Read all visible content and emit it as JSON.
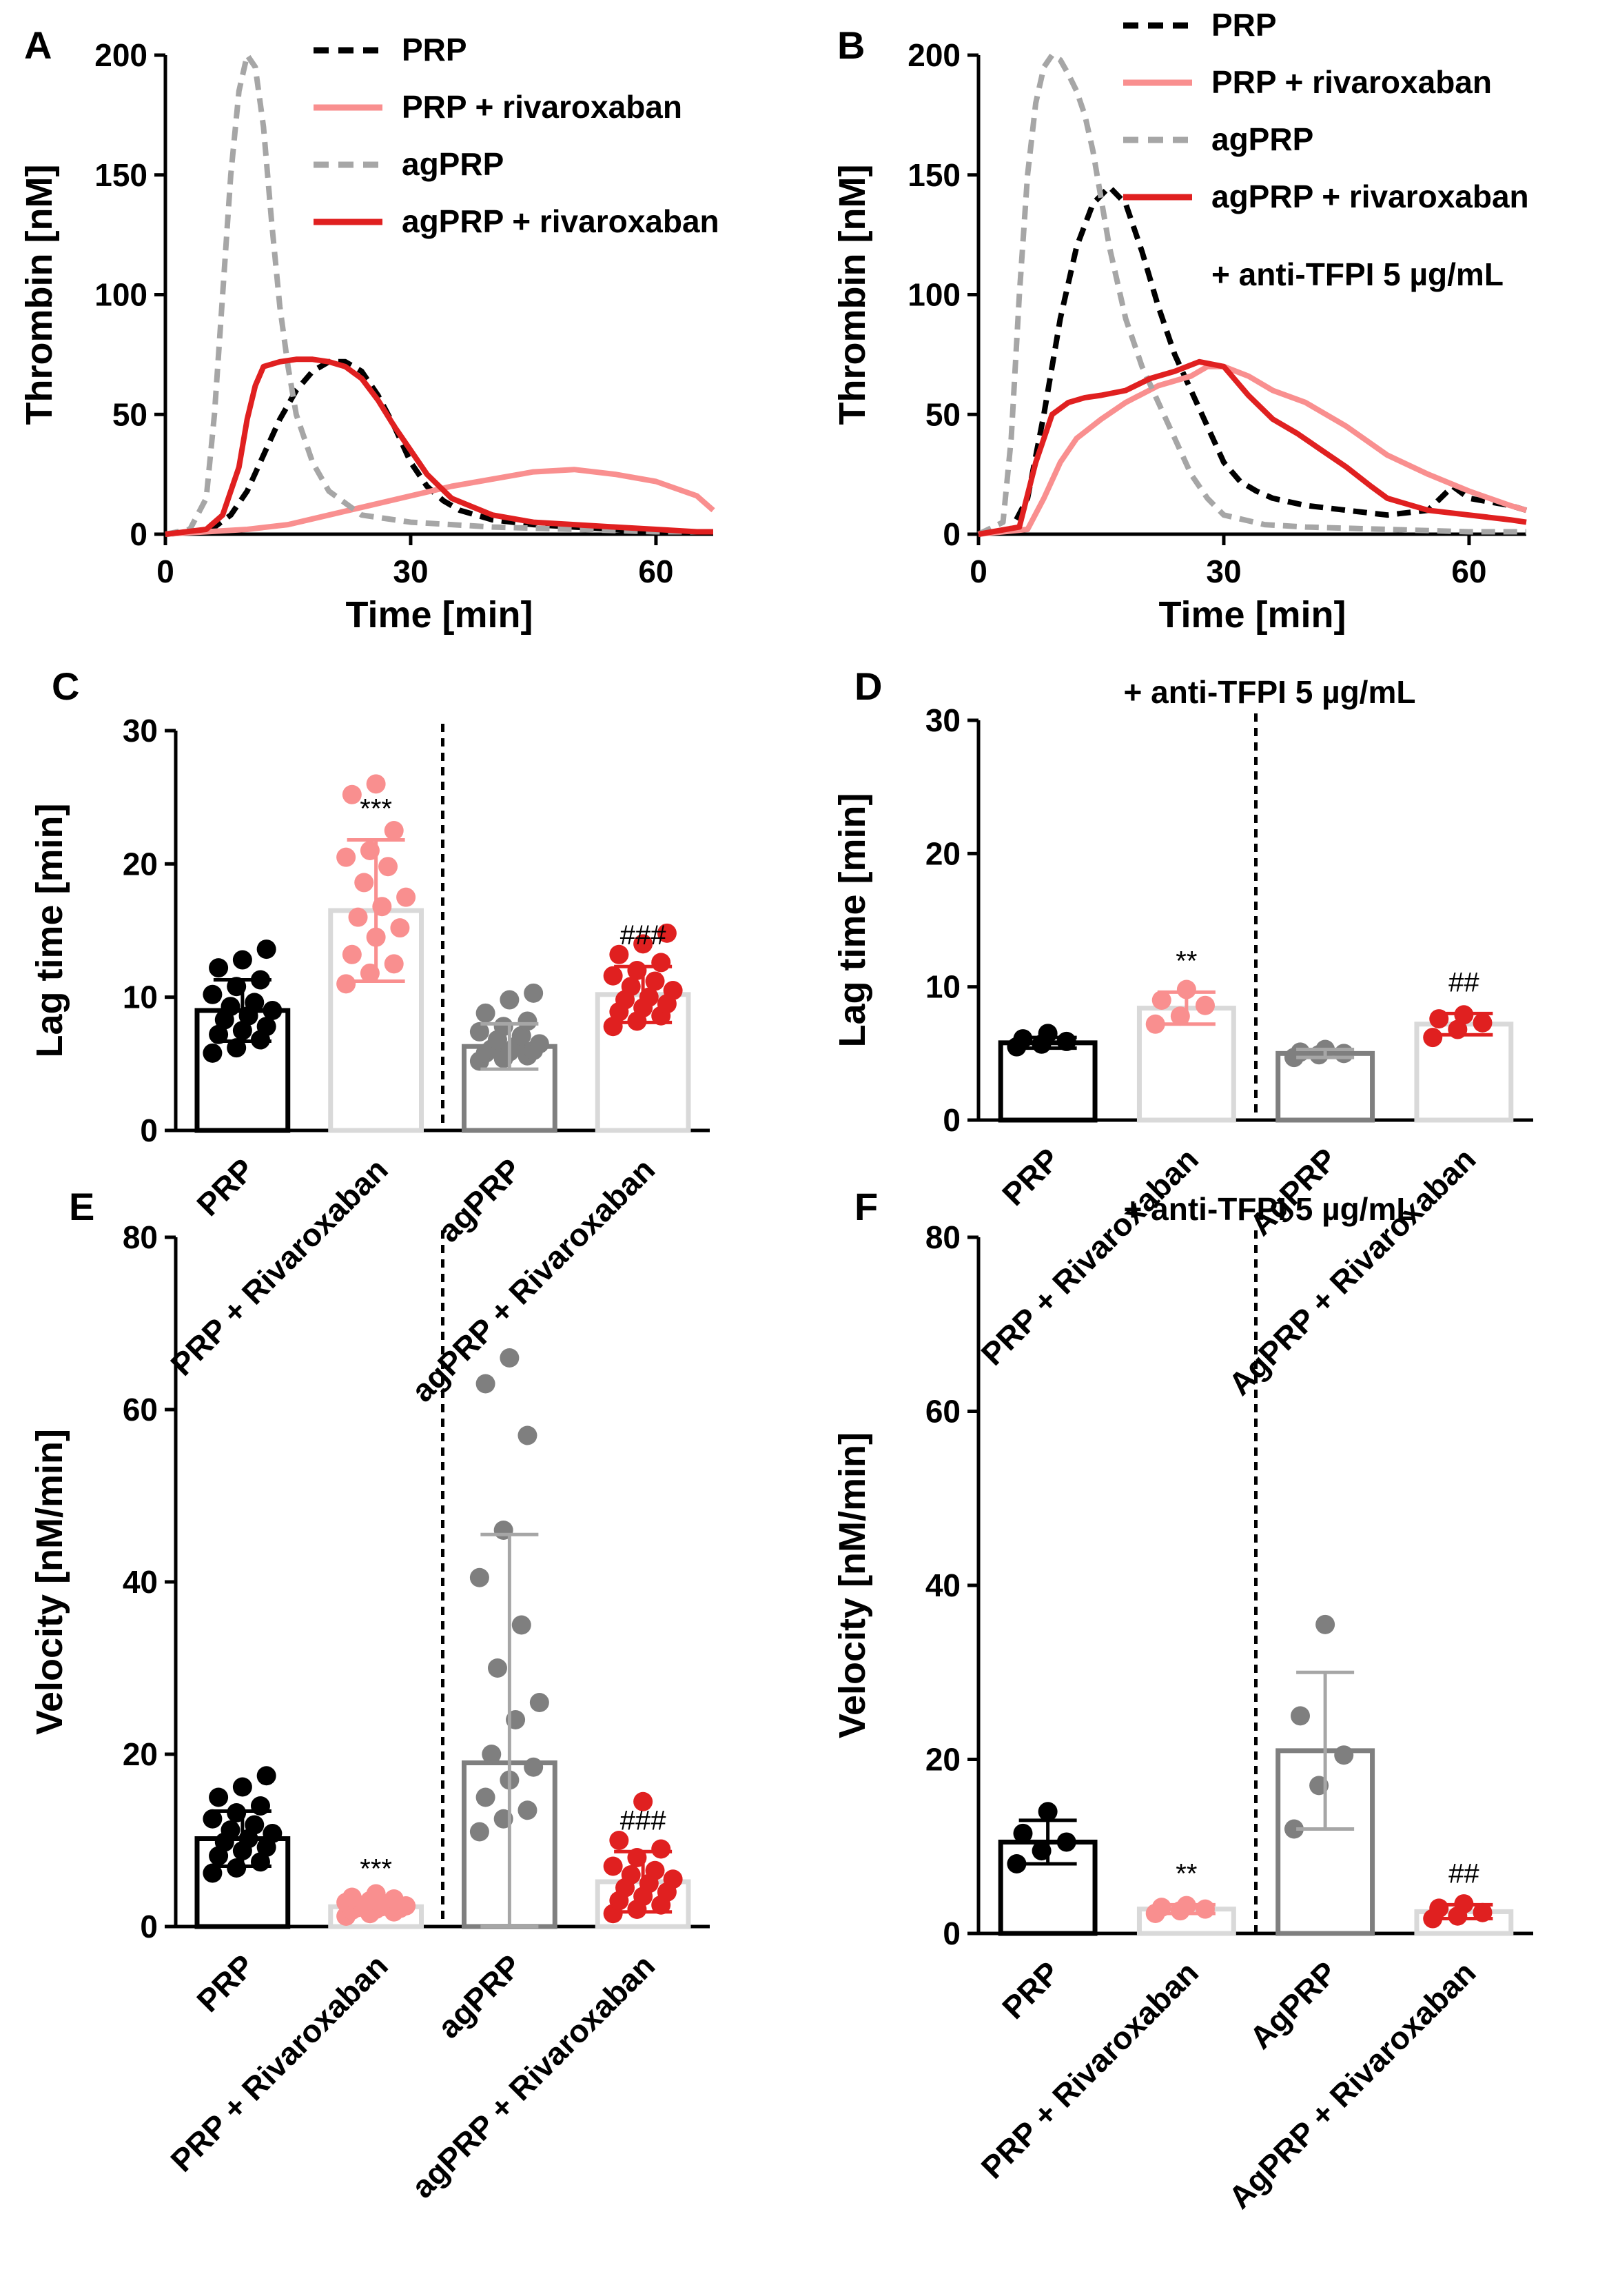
{
  "figure": {
    "panels": [
      "A",
      "B",
      "C",
      "D",
      "E",
      "F"
    ]
  },
  "chart_data": [
    {
      "panel": "A",
      "type": "line",
      "xlabel": "Time [min]",
      "ylabel": "Thrombin [nM]",
      "xlim": [
        0,
        67
      ],
      "ylim": [
        0,
        200
      ],
      "xticks": [
        "0",
        "30",
        "60"
      ],
      "yticks": [
        "0",
        "50",
        "100",
        "150",
        "200"
      ],
      "legend_position": "top-right",
      "series": [
        {
          "name": "PRP",
          "color": "#000000",
          "dash": true,
          "x": [
            0,
            4,
            6,
            8,
            10,
            12,
            14,
            16,
            18,
            20,
            22,
            24,
            26,
            28,
            30,
            32,
            34,
            36,
            40,
            45,
            50,
            55,
            60,
            65,
            67
          ],
          "y": [
            0,
            1,
            3,
            8,
            18,
            33,
            48,
            60,
            68,
            72,
            72,
            68,
            58,
            45,
            30,
            20,
            14,
            10,
            6,
            4,
            3,
            2,
            1,
            1,
            1
          ]
        },
        {
          "name": "PRP + rivaroxaban",
          "color": "#F98F8F",
          "dash": false,
          "x": [
            0,
            10,
            15,
            20,
            25,
            30,
            35,
            40,
            45,
            50,
            55,
            60,
            65,
            67
          ],
          "y": [
            0,
            2,
            4,
            8,
            12,
            16,
            20,
            23,
            26,
            27,
            25,
            22,
            16,
            10
          ]
        },
        {
          "name": "agPRP",
          "color": "#A6A6A6",
          "dash": true,
          "x": [
            0,
            3,
            5,
            6,
            7,
            8,
            9,
            10,
            11,
            12,
            13,
            14,
            15,
            16,
            18,
            20,
            24,
            30,
            40,
            50,
            60,
            67
          ],
          "y": [
            0,
            2,
            15,
            50,
            100,
            150,
            185,
            200,
            195,
            170,
            130,
            95,
            70,
            50,
            30,
            18,
            8,
            5,
            3,
            2,
            1,
            1
          ]
        },
        {
          "name": "agPRP + rivaroxaban",
          "color": "#E02020",
          "dash": false,
          "x": [
            0,
            5,
            7,
            9,
            10,
            11,
            12,
            14,
            16,
            18,
            20,
            22,
            24,
            26,
            28,
            30,
            32,
            35,
            40,
            45,
            50,
            55,
            60,
            65,
            67
          ],
          "y": [
            0,
            2,
            8,
            28,
            48,
            62,
            70,
            72,
            73,
            73,
            72,
            70,
            65,
            56,
            45,
            35,
            25,
            15,
            8,
            5,
            4,
            3,
            2,
            1,
            1
          ]
        }
      ]
    },
    {
      "panel": "B",
      "type": "line",
      "xlabel": "Time [min]",
      "ylabel": "Thrombin [nM]",
      "xlim": [
        0,
        67
      ],
      "ylim": [
        0,
        200
      ],
      "xticks": [
        "0",
        "30",
        "60"
      ],
      "yticks": [
        "0",
        "50",
        "100",
        "150",
        "200"
      ],
      "legend_position": "top-right",
      "annotation": "+ anti-TFPI 5 µg/mL",
      "series": [
        {
          "name": "PRP",
          "color": "#000000",
          "dash": true,
          "x": [
            0,
            4,
            6,
            8,
            10,
            12,
            14,
            16,
            18,
            20,
            22,
            24,
            26,
            28,
            30,
            32,
            34,
            36,
            40,
            45,
            50,
            55,
            58,
            60,
            65,
            67
          ],
          "y": [
            0,
            2,
            15,
            50,
            90,
            120,
            138,
            145,
            138,
            118,
            95,
            75,
            60,
            45,
            30,
            22,
            18,
            15,
            12,
            10,
            8,
            10,
            20,
            15,
            12,
            10
          ]
        },
        {
          "name": "PRP + rivaroxaban",
          "color": "#F98F8F",
          "dash": false,
          "x": [
            0,
            6,
            8,
            10,
            12,
            15,
            18,
            22,
            26,
            28,
            30,
            33,
            36,
            40,
            45,
            50,
            55,
            60,
            65,
            67
          ],
          "y": [
            0,
            2,
            15,
            30,
            40,
            48,
            55,
            62,
            66,
            70,
            70,
            66,
            60,
            55,
            45,
            33,
            25,
            18,
            12,
            10
          ]
        },
        {
          "name": "agPRP",
          "color": "#A6A6A6",
          "dash": true,
          "x": [
            0,
            3,
            4,
            5,
            6,
            7,
            8,
            9,
            10,
            11,
            12,
            13,
            14,
            15,
            16,
            18,
            20,
            22,
            24,
            26,
            28,
            30,
            35,
            40,
            50,
            60,
            67
          ],
          "y": [
            0,
            5,
            40,
            100,
            150,
            180,
            195,
            200,
            198,
            192,
            185,
            175,
            160,
            140,
            120,
            90,
            70,
            55,
            40,
            25,
            15,
            8,
            4,
            3,
            2,
            1,
            1
          ]
        },
        {
          "name": "agPRP + rivaroxaban",
          "color": "#E02020",
          "dash": false,
          "x": [
            0,
            5,
            7,
            9,
            11,
            13,
            15,
            18,
            21,
            24,
            27,
            30,
            33,
            36,
            39,
            42,
            45,
            48,
            50,
            55,
            60,
            65,
            67
          ],
          "y": [
            0,
            3,
            30,
            50,
            55,
            57,
            58,
            60,
            65,
            68,
            72,
            70,
            58,
            48,
            42,
            35,
            28,
            20,
            15,
            10,
            8,
            6,
            5
          ]
        }
      ]
    },
    {
      "panel": "C",
      "type": "bar",
      "ylabel": "Lag time [min]",
      "ylim": [
        0,
        30
      ],
      "yticks": [
        "0",
        "10",
        "20",
        "30"
      ],
      "categories": [
        "PRP",
        "PRP + Rivaroxaban",
        "agPRP",
        "agPRP + Rivaroxaban"
      ],
      "colors": [
        "#000000",
        "#F98F8F",
        "#7F7F7F",
        "#E02020"
      ],
      "values": [
        9.0,
        16.5,
        6.3,
        10.2
      ],
      "sd": [
        2.3,
        5.3,
        1.7,
        2.1
      ],
      "significance": [
        "",
        "***",
        "",
        "###"
      ],
      "points": [
        [
          5.8,
          6.2,
          6.8,
          7.2,
          7.5,
          7.8,
          8.3,
          8.6,
          9.0,
          9.3,
          9.6,
          10.2,
          10.8,
          11.3,
          12.2,
          12.8,
          13.6
        ],
        [
          11.0,
          11.8,
          12.5,
          13.2,
          14.5,
          15.2,
          16.0,
          16.8,
          17.5,
          18.6,
          19.8,
          20.5,
          21.0,
          22.5,
          25.2,
          26.0
        ],
        [
          5.2,
          5.4,
          5.6,
          5.8,
          5.9,
          6.0,
          6.1,
          6.3,
          6.5,
          6.8,
          7.1,
          7.4,
          7.8,
          8.2,
          8.8,
          9.8,
          10.3
        ],
        [
          7.8,
          8.2,
          8.6,
          8.9,
          9.2,
          9.5,
          9.8,
          10.0,
          10.5,
          10.8,
          11.2,
          11.6,
          12.0,
          12.6,
          13.2,
          14.0,
          14.8
        ]
      ]
    },
    {
      "panel": "D",
      "type": "bar",
      "title": "+ anti-TFPI 5 µg/mL",
      "ylabel": "Lag time [min]",
      "ylim": [
        0,
        30
      ],
      "yticks": [
        "0",
        "10",
        "20",
        "30"
      ],
      "categories": [
        "PRP",
        "PRP + Rivaroxaban",
        "AgPRP",
        "AgPRP + Rivaroxaban"
      ],
      "colors": [
        "#000000",
        "#F98F8F",
        "#7F7F7F",
        "#E02020"
      ],
      "values": [
        5.8,
        8.4,
        5.0,
        7.2
      ],
      "sd": [
        0.4,
        1.2,
        0.3,
        0.8
      ],
      "significance": [
        "",
        "**",
        "",
        "##"
      ],
      "points": [
        [
          5.5,
          5.7,
          5.9,
          6.1,
          6.5
        ],
        [
          7.2,
          7.8,
          8.6,
          9.0,
          9.8
        ],
        [
          4.7,
          4.9,
          5.0,
          5.1,
          5.3
        ],
        [
          6.2,
          6.8,
          7.3,
          7.6,
          7.9
        ]
      ]
    },
    {
      "panel": "E",
      "type": "bar",
      "ylabel": "Velocity [nM/min]",
      "ylim": [
        0,
        80
      ],
      "yticks": [
        "0",
        "20",
        "40",
        "60",
        "80"
      ],
      "categories": [
        "PRP",
        "PRP + Rivaroxaban",
        "agPRP",
        "agPRP + Rivaroxaban"
      ],
      "colors": [
        "#000000",
        "#F98F8F",
        "#7F7F7F",
        "#E02020"
      ],
      "values": [
        10.2,
        2.3,
        19.0,
        5.2
      ],
      "sd": [
        3.2,
        0.8,
        26.5,
        3.5
      ],
      "significance": [
        "",
        "***",
        "",
        "###"
      ],
      "points": [
        [
          6.2,
          6.8,
          7.5,
          8.2,
          8.8,
          9.2,
          9.8,
          10.2,
          10.8,
          11.2,
          11.8,
          12.5,
          13.2,
          14.0,
          15.0,
          16.2,
          17.5
        ],
        [
          1.2,
          1.5,
          1.7,
          1.9,
          2.0,
          2.1,
          2.2,
          2.3,
          2.4,
          2.5,
          2.6,
          2.8,
          3.0,
          3.2,
          3.4,
          3.8
        ],
        [
          11.0,
          12.5,
          13.5,
          15.0,
          17.0,
          18.5,
          20.0,
          24.0,
          26.0,
          30.0,
          35.0,
          40.5,
          46.0,
          57.0,
          63.0,
          66.0
        ],
        [
          1.5,
          2.0,
          2.5,
          3.0,
          3.5,
          4.0,
          4.5,
          5.0,
          5.5,
          6.0,
          6.5,
          7.0,
          8.0,
          9.0,
          10.0,
          14.5
        ]
      ]
    },
    {
      "panel": "F",
      "type": "bar",
      "title": "+ anti-TFPI 5 µg/mL",
      "ylabel": "Velocity [nM/min]",
      "ylim": [
        0,
        80
      ],
      "yticks": [
        "0",
        "20",
        "40",
        "60",
        "80"
      ],
      "categories": [
        "PRP",
        "PRP + Rivaroxaban",
        "AgPRP",
        "AgPRP + Rivaroxaban"
      ],
      "colors": [
        "#000000",
        "#F98F8F",
        "#7F7F7F",
        "#E02020"
      ],
      "values": [
        10.5,
        2.8,
        21.0,
        2.5
      ],
      "sd": [
        2.5,
        0.5,
        9.0,
        0.8
      ],
      "significance": [
        "",
        "**",
        "",
        "##"
      ],
      "points": [
        [
          8.0,
          9.5,
          10.5,
          11.5,
          14.0
        ],
        [
          2.3,
          2.6,
          2.8,
          3.0,
          3.2
        ],
        [
          12.0,
          17.0,
          20.5,
          25.0,
          35.5
        ],
        [
          1.7,
          2.0,
          2.4,
          2.9,
          3.4
        ]
      ]
    }
  ]
}
